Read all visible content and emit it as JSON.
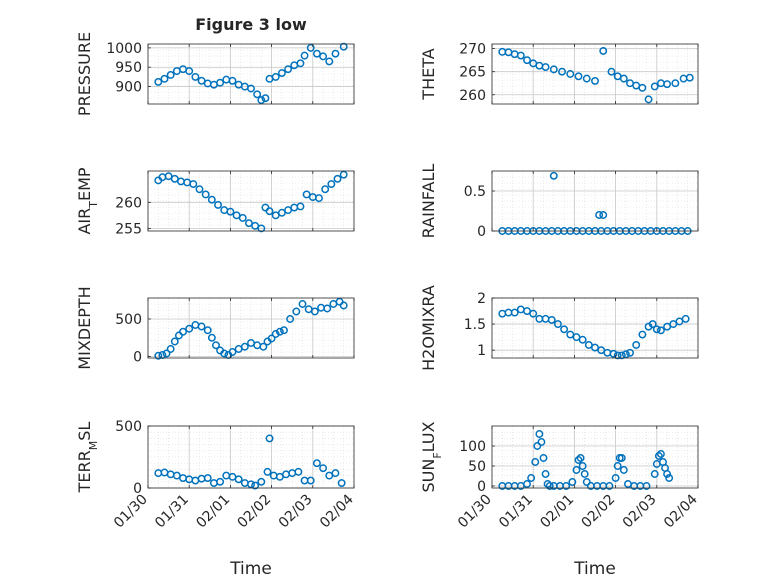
{
  "figure": {
    "title": "Figure 3 low",
    "xlabel": "Time",
    "x_ticks": [
      "01/30",
      "01/31",
      "02/01",
      "02/02",
      "02/03",
      "02/04"
    ],
    "marker_color": "#0072BD",
    "grid": true,
    "minor_grid": true
  },
  "chart_data": [
    {
      "type": "scatter",
      "marker": "circle",
      "ylabel": "PRESSURE",
      "xlim": [
        0,
        5
      ],
      "ylim": [
        855,
        1010
      ],
      "yticks": [
        900,
        950,
        1000
      ],
      "x": [
        0.25,
        0.4,
        0.55,
        0.7,
        0.85,
        1.0,
        1.15,
        1.3,
        1.45,
        1.6,
        1.75,
        1.9,
        2.05,
        2.2,
        2.35,
        2.5,
        2.65,
        2.75,
        2.85,
        2.95,
        3.1,
        3.25,
        3.4,
        3.55,
        3.7,
        3.8,
        3.95,
        4.1,
        4.25,
        4.4,
        4.55,
        4.75
      ],
      "y": [
        912,
        920,
        930,
        940,
        945,
        940,
        925,
        915,
        908,
        905,
        910,
        918,
        915,
        905,
        900,
        895,
        880,
        865,
        870,
        920,
        925,
        935,
        945,
        955,
        960,
        980,
        1000,
        985,
        978,
        965,
        985,
        1003
      ]
    },
    {
      "type": "scatter",
      "marker": "circle",
      "ylabel": "THETA",
      "xlim": [
        0,
        5
      ],
      "ylim": [
        258,
        271
      ],
      "yticks": [
        260,
        265,
        270
      ],
      "x": [
        0.25,
        0.4,
        0.55,
        0.7,
        0.85,
        1.0,
        1.15,
        1.3,
        1.5,
        1.7,
        1.9,
        2.1,
        2.3,
        2.5,
        2.7,
        2.9,
        3.05,
        3.2,
        3.35,
        3.5,
        3.65,
        3.8,
        3.95,
        4.1,
        4.25,
        4.45,
        4.65,
        4.8
      ],
      "y": [
        269.3,
        269.2,
        268.8,
        268.5,
        267.5,
        266.8,
        266.3,
        266.0,
        265.5,
        265.0,
        264.5,
        264.0,
        263.5,
        263.0,
        269.5,
        265.0,
        264.0,
        263.5,
        262.5,
        262.0,
        261.5,
        259.0,
        261.8,
        262.5,
        262.3,
        262.5,
        263.5,
        263.7
      ]
    },
    {
      "type": "scatter",
      "marker": "circle",
      "ylabel": "AIR_TEMP",
      "xlim": [
        0,
        5
      ],
      "ylim": [
        254.5,
        266
      ],
      "yticks": [
        255,
        260
      ],
      "x": [
        0.25,
        0.35,
        0.5,
        0.65,
        0.8,
        0.95,
        1.1,
        1.25,
        1.4,
        1.55,
        1.7,
        1.85,
        2.0,
        2.15,
        2.3,
        2.45,
        2.6,
        2.75,
        2.85,
        2.95,
        3.1,
        3.25,
        3.4,
        3.55,
        3.7,
        3.85,
        4.0,
        4.15,
        4.3,
        4.45,
        4.6,
        4.75
      ],
      "y": [
        264.2,
        264.8,
        265.0,
        264.5,
        264.0,
        263.8,
        263.5,
        262.5,
        261.5,
        260.5,
        259.5,
        258.5,
        258.2,
        257.5,
        257.0,
        256.0,
        255.5,
        255.0,
        259.0,
        258.3,
        257.5,
        258.0,
        258.5,
        259.0,
        259.2,
        261.5,
        261.0,
        260.8,
        262.5,
        263.5,
        264.5,
        265.3
      ]
    },
    {
      "type": "scatter",
      "marker": "circle",
      "ylabel": "RAINFALL",
      "xlim": [
        0,
        5
      ],
      "ylim": [
        0,
        0.75
      ],
      "yticks": [
        0,
        0.5
      ],
      "x": [
        0.25,
        0.4,
        0.55,
        0.7,
        0.85,
        1.0,
        1.15,
        1.3,
        1.45,
        1.6,
        1.75,
        1.9,
        2.05,
        2.2,
        2.35,
        2.5,
        2.65,
        2.8,
        2.95,
        3.1,
        3.25,
        3.4,
        3.55,
        3.7,
        3.85,
        4.0,
        4.15,
        4.3,
        4.45,
        4.6,
        4.75,
        2.6,
        2.7
      ],
      "y": [
        0,
        0,
        0,
        0,
        0,
        0,
        0,
        0,
        0,
        0,
        0,
        0,
        0,
        0,
        0,
        0,
        0,
        0,
        0,
        0,
        0,
        0,
        0,
        0,
        0,
        0,
        0,
        0,
        0,
        0,
        0,
        0.2,
        0.2
      ],
      "outliers": [
        {
          "x": 1.5,
          "y": 0.69
        }
      ]
    },
    {
      "type": "scatter",
      "marker": "circle",
      "ylabel": "MIXDEPTH",
      "xlim": [
        0,
        5
      ],
      "ylim": [
        -20,
        780
      ],
      "yticks": [
        0,
        500
      ],
      "x": [
        0.25,
        0.35,
        0.45,
        0.55,
        0.65,
        0.75,
        0.85,
        1.0,
        1.15,
        1.3,
        1.45,
        1.55,
        1.65,
        1.75,
        1.85,
        1.95,
        2.05,
        2.2,
        2.35,
        2.5,
        2.65,
        2.8,
        2.9,
        3.0,
        3.1,
        3.2,
        3.3,
        3.45,
        3.6,
        3.75,
        3.9,
        4.05,
        4.2,
        4.35,
        4.5,
        4.65,
        4.75
      ],
      "y": [
        10,
        20,
        40,
        100,
        200,
        280,
        330,
        370,
        420,
        400,
        350,
        250,
        150,
        80,
        40,
        20,
        60,
        100,
        130,
        180,
        150,
        130,
        200,
        240,
        300,
        330,
        350,
        500,
        600,
        700,
        630,
        600,
        650,
        640,
        700,
        730,
        680
      ]
    },
    {
      "type": "scatter",
      "marker": "circle",
      "ylabel": "H2OMIXRA",
      "xlim": [
        0,
        5
      ],
      "ylim": [
        0.85,
        2.0
      ],
      "yticks": [
        1,
        1.5,
        2
      ],
      "x": [
        0.25,
        0.4,
        0.55,
        0.7,
        0.85,
        1.0,
        1.15,
        1.3,
        1.45,
        1.6,
        1.75,
        1.9,
        2.05,
        2.2,
        2.35,
        2.5,
        2.65,
        2.8,
        2.95,
        3.05,
        3.15,
        3.25,
        3.35,
        3.5,
        3.65,
        3.8,
        3.9,
        4.0,
        4.1,
        4.25,
        4.4,
        4.55,
        4.7
      ],
      "y": [
        1.7,
        1.72,
        1.72,
        1.78,
        1.75,
        1.7,
        1.6,
        1.6,
        1.58,
        1.5,
        1.4,
        1.3,
        1.25,
        1.2,
        1.1,
        1.05,
        1.0,
        0.95,
        0.93,
        0.9,
        0.9,
        0.92,
        0.95,
        1.1,
        1.3,
        1.45,
        1.5,
        1.4,
        1.38,
        1.45,
        1.5,
        1.55,
        1.6
      ]
    },
    {
      "type": "scatter",
      "marker": "circle",
      "ylabel": "TERR_MSL",
      "xlim": [
        0,
        5
      ],
      "ylim": [
        0,
        500
      ],
      "yticks": [
        0,
        500
      ],
      "x": [
        0.25,
        0.4,
        0.55,
        0.7,
        0.85,
        1.0,
        1.15,
        1.3,
        1.45,
        1.6,
        1.75,
        1.9,
        2.05,
        2.2,
        2.35,
        2.5,
        2.6,
        2.75,
        2.9,
        3.05,
        3.2,
        3.35,
        3.5,
        3.65,
        3.8,
        3.95,
        4.1,
        4.25,
        4.4,
        4.55,
        4.7
      ],
      "y": [
        120,
        125,
        110,
        100,
        80,
        70,
        60,
        75,
        80,
        40,
        50,
        100,
        90,
        70,
        40,
        30,
        20,
        50,
        130,
        100,
        90,
        110,
        120,
        130,
        60,
        60,
        200,
        160,
        100,
        120,
        40
      ],
      "outliers": [
        {
          "x": 2.95,
          "y": 400
        }
      ]
    },
    {
      "type": "scatter",
      "marker": "circle",
      "ylabel": "SUN_FLUX",
      "xlim": [
        0,
        5
      ],
      "ylim": [
        -5,
        150
      ],
      "yticks": [
        0,
        50,
        100
      ],
      "x": [
        0.25,
        0.4,
        0.55,
        0.7,
        0.85,
        0.95,
        1.05,
        1.1,
        1.15,
        1.2,
        1.25,
        1.3,
        1.35,
        1.4,
        1.5,
        1.65,
        1.8,
        1.95,
        2.05,
        2.1,
        2.15,
        2.2,
        2.25,
        2.3,
        2.4,
        2.55,
        2.7,
        2.85,
        3.0,
        3.05,
        3.1,
        3.15,
        3.2,
        3.3,
        3.45,
        3.6,
        3.75,
        3.95,
        4.0,
        4.05,
        4.1,
        4.15,
        4.2,
        4.25,
        4.3
      ],
      "y": [
        0,
        0,
        0,
        0,
        5,
        20,
        60,
        100,
        130,
        110,
        70,
        30,
        5,
        0,
        0,
        0,
        0,
        10,
        40,
        65,
        70,
        50,
        30,
        10,
        0,
        0,
        0,
        0,
        20,
        50,
        70,
        70,
        40,
        5,
        0,
        0,
        0,
        30,
        55,
        75,
        80,
        60,
        45,
        30,
        20
      ]
    }
  ]
}
